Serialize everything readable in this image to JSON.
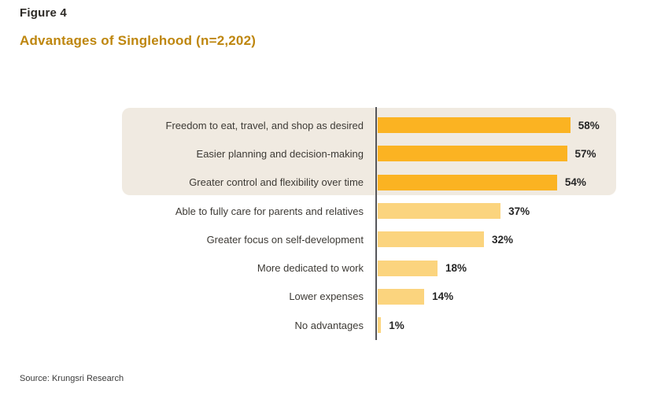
{
  "figure_label": "Figure 4",
  "title": "Advantages of Singlehood (n=2,202)",
  "source": "Source: Krungsri Research",
  "colors": {
    "title_text": "#BE860E",
    "figure_label_text": "#2D2A26",
    "bar_emphasized": "#FBB322",
    "bar_regular": "#FBD47E",
    "highlight_background": "#F0EAE1",
    "axis_line": "#55565A",
    "category_text": "#3D3A35",
    "value_text": "#262626"
  },
  "chart_data": {
    "type": "bar",
    "orientation": "horizontal",
    "title": "Advantages of Singlehood (n=2,202)",
    "categories": [
      "Freedom to eat, travel, and shop as desired",
      "Easier planning and decision-making",
      "Greater control and flexibility over time",
      "Able to fully care for parents and relatives",
      "Greater focus on self-development",
      "More dedicated to work",
      "Lower expenses",
      "No advantages"
    ],
    "values": [
      58,
      57,
      54,
      37,
      32,
      18,
      14,
      1
    ],
    "value_labels": [
      "58%",
      "57%",
      "54%",
      "37%",
      "32%",
      "18%",
      "14%",
      "1%"
    ],
    "emphasized": [
      true,
      true,
      true,
      false,
      false,
      false,
      false,
      false
    ],
    "xlim": [
      0,
      60
    ],
    "xlabel": "",
    "ylabel": "",
    "grid": false,
    "legend": false
  }
}
